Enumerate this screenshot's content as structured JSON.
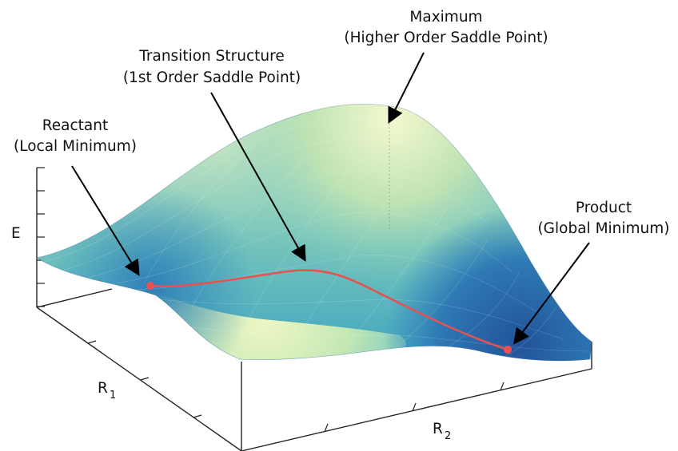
{
  "annotations": {
    "maximum": {
      "line1": "Maximum",
      "line2": "(Higher Order Saddle Point)"
    },
    "transition": {
      "line1": "Transition Structure",
      "line2": "(1st Order Saddle Point)"
    },
    "reactant": {
      "line1": "Reactant",
      "line2": "(Local Minimum)"
    },
    "product": {
      "line1": "Product",
      "line2": "(Global Minimum)"
    }
  },
  "axes": {
    "e_label": "E",
    "r1_label": "R",
    "r1_sub": "1",
    "r2_label": "R",
    "r2_sub": "2"
  },
  "colors": {
    "surface_dark": "#2a5fa3",
    "surface_mid": "#3aa3c1",
    "surface_light": "#e9f5bf",
    "path": "#e8514f"
  }
}
